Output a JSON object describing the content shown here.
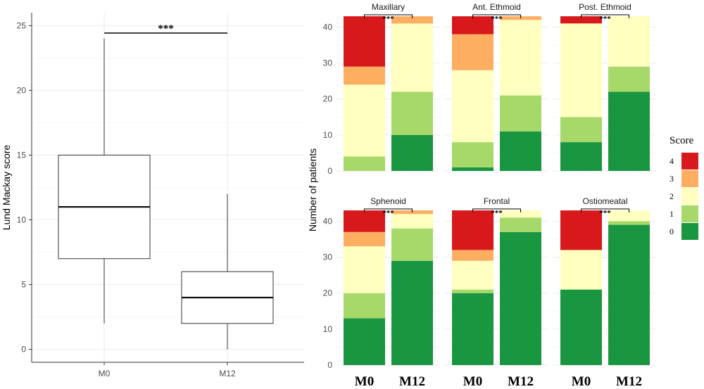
{
  "chart_data": [
    {
      "type": "box",
      "ylabel": "Lund Mackay score",
      "ylim": [
        -1,
        26
      ],
      "y_ticks": [
        0,
        5,
        10,
        15,
        20,
        25
      ],
      "categories": [
        "M0",
        "M12"
      ],
      "boxes": [
        {
          "category": "M0",
          "min": 2,
          "q1": 7,
          "median": 11,
          "q3": 15,
          "max": 24
        },
        {
          "category": "M12",
          "min": 0,
          "q1": 2,
          "median": 4,
          "q3": 6,
          "max": 12
        }
      ],
      "significance": {
        "from": "M0",
        "to": "M12",
        "label": "***"
      },
      "grid": true
    },
    {
      "type": "bar",
      "stacked": true,
      "ylabel": "Number of patients",
      "ylim": [
        0,
        44
      ],
      "y_ticks": [
        0,
        10,
        20,
        30,
        40
      ],
      "categories": [
        "M0",
        "M12"
      ],
      "legend": {
        "title": "Score",
        "position": "right",
        "levels": [
          "4",
          "3",
          "2",
          "1",
          "0"
        ],
        "colors": {
          "0": "#1a9641",
          "1": "#a6d96a",
          "2": "#ffffbf",
          "3": "#fdae61",
          "4": "#d7191c"
        }
      },
      "significance_label": "***",
      "grid": true,
      "panels": [
        {
          "name": "Maxillary",
          "M0": {
            "0": 0,
            "1": 4,
            "2": 20,
            "3": 5,
            "4": 14
          },
          "M12": {
            "0": 10,
            "1": 12,
            "2": 19,
            "3": 2,
            "4": 0
          }
        },
        {
          "name": "Ant. Ethmoid",
          "M0": {
            "0": 1,
            "1": 7,
            "2": 20,
            "3": 10,
            "4": 5
          },
          "M12": {
            "0": 11,
            "1": 10,
            "2": 21,
            "3": 1,
            "4": 0
          }
        },
        {
          "name": "Post. Ethmoid",
          "M0": {
            "0": 8,
            "1": 7,
            "2": 26,
            "3": 0,
            "4": 2
          },
          "M12": {
            "0": 22,
            "1": 7,
            "2": 14,
            "3": 0,
            "4": 0
          }
        },
        {
          "name": "Sphenoid",
          "M0": {
            "0": 13,
            "1": 7,
            "2": 13,
            "3": 4,
            "4": 6
          },
          "M12": {
            "0": 29,
            "1": 9,
            "2": 4,
            "3": 1,
            "4": 0
          }
        },
        {
          "name": "Frontal",
          "M0": {
            "0": 20,
            "1": 1,
            "2": 8,
            "3": 3,
            "4": 11
          },
          "M12": {
            "0": 37,
            "1": 4,
            "2": 2,
            "3": 0,
            "4": 0
          }
        },
        {
          "name": "Ostiomeatal",
          "M0": {
            "0": 21,
            "1": 0,
            "2": 11,
            "3": 0,
            "4": 11
          },
          "M12": {
            "0": 39,
            "1": 1,
            "2": 3,
            "3": 0,
            "4": 0
          }
        }
      ]
    }
  ]
}
